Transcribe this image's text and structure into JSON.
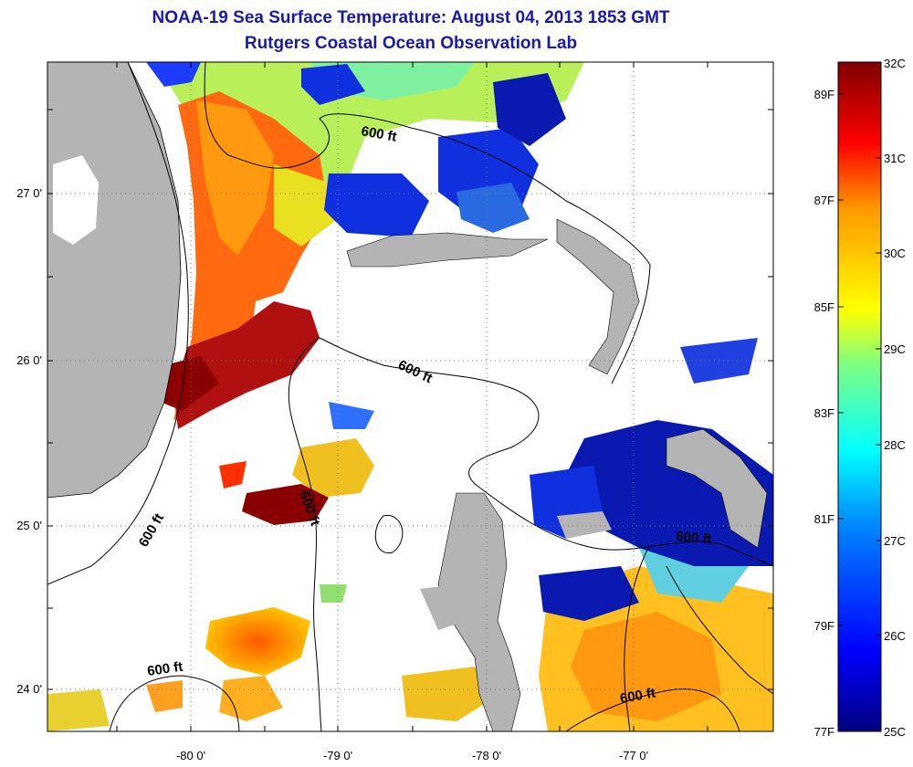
{
  "title": "NOAA-19 Sea Surface Temperature:  August 04, 2013 1853 GMT",
  "subtitle": "Rutgers Coastal Ocean Observation Lab",
  "map": {
    "x_ticks": [
      "-80 0'",
      "-79 0'",
      "-78 0'",
      "-77 0'"
    ],
    "y_ticks": [
      "27 0'",
      "26 0'",
      "25 0'",
      "24 0'"
    ],
    "contour_labels": [
      "600 ft",
      "600 ft",
      "600 ft",
      "600 ft",
      "600 ft",
      "600 ft"
    ],
    "colors": {
      "land": "#b4b4b4",
      "no_data": "#ffffff"
    }
  },
  "colorbar": {
    "celsius_labels": [
      "32C",
      "31C",
      "30C",
      "29C",
      "28C",
      "27C",
      "26C",
      "25C"
    ],
    "fahrenheit_labels": [
      "89F",
      "87F",
      "85F",
      "83F",
      "81F",
      "79F",
      "77F"
    ],
    "colors": [
      "#7f0000",
      "#ff0000",
      "#ff9900",
      "#ffff00",
      "#80ff80",
      "#00ffff",
      "#0080ff",
      "#0000ff",
      "#000080"
    ]
  }
}
